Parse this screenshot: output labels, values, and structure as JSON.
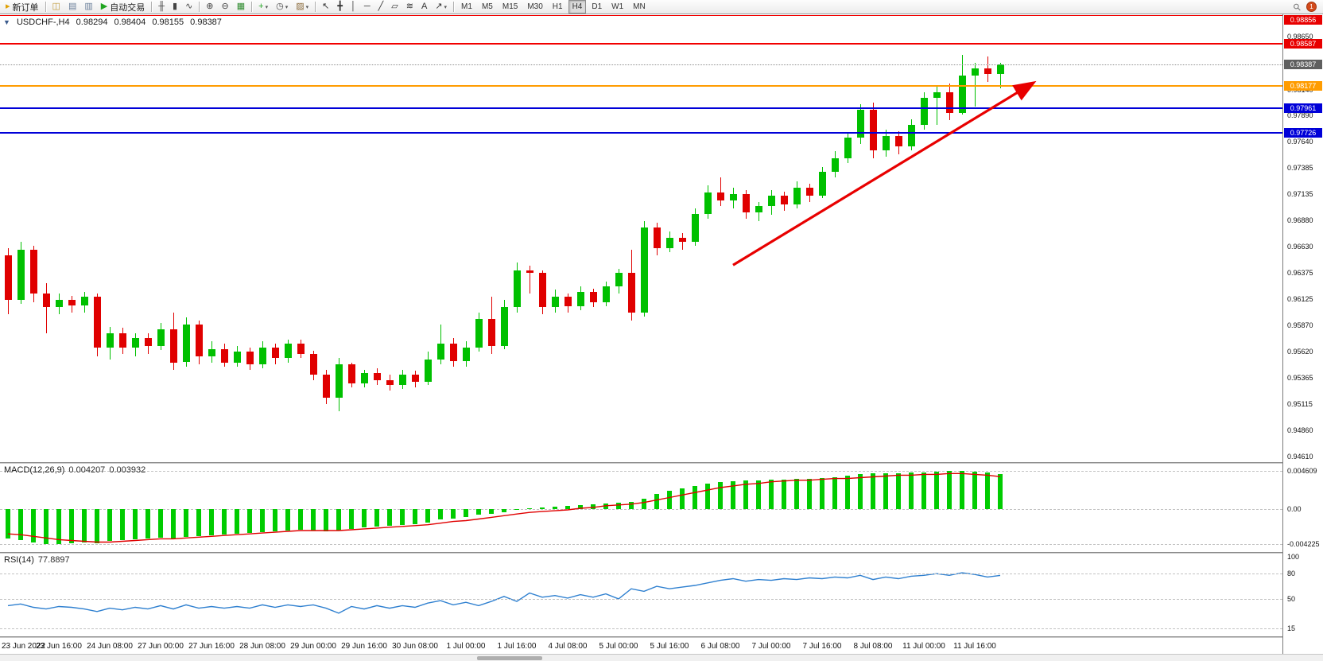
{
  "toolbar": {
    "items": [
      {
        "name": "new-order-button",
        "label": "新订单",
        "glyph": "▸",
        "glyph_color": "#e0a000"
      },
      {
        "name": "separator"
      },
      {
        "name": "market-watch-button",
        "glyph": "◫",
        "glyph_color": "#c09a3a"
      },
      {
        "name": "data-window-button",
        "glyph": "▤",
        "glyph_color": "#6a7f9a"
      },
      {
        "name": "navigator-button",
        "glyph": "▥",
        "glyph_color": "#6a7f9a"
      },
      {
        "name": "autotrading-button",
        "label": "自动交易",
        "glyph": "▶",
        "glyph_color": "#1fa41f"
      },
      {
        "name": "separator"
      },
      {
        "name": "bar-chart-button",
        "glyph": "╫",
        "glyph_color": "#444444"
      },
      {
        "name": "candlestick-chart-button",
        "glyph": "▮",
        "glyph_color": "#444444"
      },
      {
        "name": "line-chart-button",
        "glyph": "∿",
        "glyph_color": "#444444"
      },
      {
        "name": "separator"
      },
      {
        "name": "zoom-in-button",
        "glyph": "⊕",
        "glyph_color": "#444444"
      },
      {
        "name": "zoom-out-button",
        "glyph": "⊖",
        "glyph_color": "#444444"
      },
      {
        "name": "tile-windows-button",
        "glyph": "▦",
        "glyph_color": "#2e8b2e"
      },
      {
        "name": "separator"
      },
      {
        "name": "indicators-button",
        "glyph": "+",
        "glyph_color": "#1fa41f",
        "caret": true
      },
      {
        "name": "periods-button",
        "glyph": "◷",
        "glyph_color": "#444444",
        "caret": true
      },
      {
        "name": "templates-button",
        "glyph": "▨",
        "glyph_color": "#8a6a3a",
        "caret": true
      },
      {
        "name": "separator"
      },
      {
        "name": "cursor-tool-button",
        "glyph": "↖",
        "glyph_color": "#333333"
      },
      {
        "name": "crosshair-tool-button",
        "glyph": "╋",
        "glyph_color": "#333333"
      },
      {
        "name": "vertical-line-tool-button",
        "glyph": "│",
        "glyph_color": "#333333"
      },
      {
        "name": "horizontal-line-tool-button",
        "glyph": "─",
        "glyph_color": "#333333"
      },
      {
        "name": "trendline-tool-button",
        "glyph": "╱",
        "glyph_color": "#333333"
      },
      {
        "name": "channel-tool-button",
        "glyph": "▱",
        "glyph_color": "#333333"
      },
      {
        "name": "fibonacci-tool-button",
        "glyph": "≋",
        "glyph_color": "#333333"
      },
      {
        "name": "text-tool-button",
        "glyph": "A",
        "glyph_color": "#333333"
      },
      {
        "name": "arrows-tool-button",
        "glyph": "↗",
        "glyph_color": "#333333",
        "caret": true
      },
      {
        "name": "separator"
      }
    ],
    "timeframes": [
      "M1",
      "M5",
      "M15",
      "M30",
      "H1",
      "H4",
      "D1",
      "W1",
      "MN"
    ],
    "active_timeframe": "H4",
    "right_items": [
      {
        "name": "search-icon",
        "glyph": "⚲"
      },
      {
        "name": "notification-badge",
        "label": "1",
        "bg": "#d2491a"
      }
    ]
  },
  "chart_header": {
    "collapse_glyph": "▼",
    "symbol_period": "USDCHF-,H4",
    "open": "0.98294",
    "high": "0.98404",
    "low": "0.98155",
    "close": "0.98387"
  },
  "chart_data": [
    {
      "type": "candlestick",
      "title": "USDCHF-,H4",
      "symbol": "USDCHF-",
      "period": "H4",
      "ohlc_header": {
        "open": 0.98294,
        "high": 0.98404,
        "low": 0.98155,
        "close": 0.98387
      },
      "up_color": "#00c000",
      "down_color": "#e00000",
      "ylim": [
        0.9456,
        0.98867
      ],
      "grid": false,
      "price_axis_ticks": [
        "0.98650",
        "0.98140",
        "0.97890",
        "0.97640",
        "0.97385",
        "0.97135",
        "0.96880",
        "0.96630",
        "0.96375",
        "0.96125",
        "0.95870",
        "0.95620",
        "0.95365",
        "0.95115",
        "0.94860",
        "0.94610"
      ],
      "x_labels": [
        "23 Jun 2022",
        "23 Jun 16:00",
        "24 Jun 08:00",
        "27 Jun 00:00",
        "27 Jun 16:00",
        "28 Jun 08:00",
        "29 Jun 00:00",
        "29 Jun 16:00",
        "30 Jun 08:00",
        "1 Jul 00:00",
        "1 Jul 16:00",
        "4 Jul 08:00",
        "5 Jul 00:00",
        "5 Jul 16:00",
        "6 Jul 08:00",
        "7 Jul 00:00",
        "7 Jul 16:00",
        "8 Jul 08:00",
        "11 Jul 00:00",
        "11 Jul 16:00"
      ],
      "bars_per_label": 4,
      "candles": [
        [
          0.9655,
          0.9662,
          0.9598,
          0.9612
        ],
        [
          0.9612,
          0.9668,
          0.9608,
          0.966
        ],
        [
          0.966,
          0.9664,
          0.961,
          0.9618
        ],
        [
          0.9618,
          0.9628,
          0.958,
          0.9605
        ],
        [
          0.9605,
          0.9618,
          0.9598,
          0.9612
        ],
        [
          0.9612,
          0.9616,
          0.96,
          0.9607
        ],
        [
          0.9607,
          0.962,
          0.96,
          0.9615
        ],
        [
          0.9615,
          0.9618,
          0.9558,
          0.9566
        ],
        [
          0.9566,
          0.9586,
          0.9555,
          0.958
        ],
        [
          0.958,
          0.9585,
          0.956,
          0.9566
        ],
        [
          0.9566,
          0.958,
          0.9558,
          0.9575
        ],
        [
          0.9575,
          0.958,
          0.956,
          0.9568
        ],
        [
          0.9568,
          0.959,
          0.9564,
          0.9584
        ],
        [
          0.9584,
          0.96,
          0.9545,
          0.9552
        ],
        [
          0.9552,
          0.9595,
          0.9548,
          0.9588
        ],
        [
          0.9588,
          0.9592,
          0.955,
          0.9558
        ],
        [
          0.9558,
          0.9572,
          0.9552,
          0.9565
        ],
        [
          0.9565,
          0.957,
          0.9548,
          0.9552
        ],
        [
          0.9552,
          0.9568,
          0.9548,
          0.9562
        ],
        [
          0.9562,
          0.9566,
          0.9545,
          0.955
        ],
        [
          0.955,
          0.9572,
          0.9546,
          0.9566
        ],
        [
          0.9566,
          0.957,
          0.955,
          0.9556
        ],
        [
          0.9556,
          0.9574,
          0.9552,
          0.957
        ],
        [
          0.957,
          0.9574,
          0.9556,
          0.956
        ],
        [
          0.956,
          0.9563,
          0.9535,
          0.954
        ],
        [
          0.954,
          0.9545,
          0.9512,
          0.9518
        ],
        [
          0.9518,
          0.9556,
          0.9505,
          0.955
        ],
        [
          0.955,
          0.9552,
          0.9528,
          0.9532
        ],
        [
          0.9532,
          0.9545,
          0.9528,
          0.9542
        ],
        [
          0.9542,
          0.9546,
          0.953,
          0.9535
        ],
        [
          0.9535,
          0.954,
          0.9525,
          0.953
        ],
        [
          0.953,
          0.9545,
          0.9526,
          0.954
        ],
        [
          0.954,
          0.9544,
          0.9528,
          0.9533
        ],
        [
          0.9533,
          0.9562,
          0.953,
          0.9555
        ],
        [
          0.9555,
          0.9588,
          0.955,
          0.957
        ],
        [
          0.957,
          0.9575,
          0.9548,
          0.9553
        ],
        [
          0.9553,
          0.9572,
          0.9548,
          0.9566
        ],
        [
          0.9566,
          0.96,
          0.9562,
          0.9594
        ],
        [
          0.9594,
          0.9615,
          0.956,
          0.9568
        ],
        [
          0.9568,
          0.9612,
          0.9565,
          0.9605
        ],
        [
          0.9605,
          0.9648,
          0.96,
          0.964
        ],
        [
          0.964,
          0.9645,
          0.9618,
          0.9638
        ],
        [
          0.9638,
          0.964,
          0.9598,
          0.9605
        ],
        [
          0.9605,
          0.9622,
          0.96,
          0.9615
        ],
        [
          0.9615,
          0.9618,
          0.96,
          0.9606
        ],
        [
          0.9606,
          0.9625,
          0.9602,
          0.962
        ],
        [
          0.962,
          0.9623,
          0.9605,
          0.961
        ],
        [
          0.961,
          0.963,
          0.9606,
          0.9625
        ],
        [
          0.9625,
          0.9642,
          0.9618,
          0.9638
        ],
        [
          0.9638,
          0.966,
          0.9592,
          0.96
        ],
        [
          0.96,
          0.9688,
          0.9596,
          0.9682
        ],
        [
          0.9682,
          0.9686,
          0.9655,
          0.9662
        ],
        [
          0.9662,
          0.9678,
          0.9658,
          0.9672
        ],
        [
          0.9672,
          0.9676,
          0.966,
          0.9668
        ],
        [
          0.9668,
          0.97,
          0.9664,
          0.9695
        ],
        [
          0.9695,
          0.9722,
          0.969,
          0.9715
        ],
        [
          0.9715,
          0.973,
          0.9702,
          0.9708
        ],
        [
          0.9708,
          0.972,
          0.97,
          0.9714
        ],
        [
          0.9714,
          0.9718,
          0.969,
          0.9696
        ],
        [
          0.9696,
          0.9706,
          0.9688,
          0.9702
        ],
        [
          0.9702,
          0.9718,
          0.9694,
          0.9712
        ],
        [
          0.9712,
          0.9716,
          0.9698,
          0.9704
        ],
        [
          0.9704,
          0.9726,
          0.97,
          0.972
        ],
        [
          0.972,
          0.9724,
          0.9706,
          0.9712
        ],
        [
          0.9712,
          0.974,
          0.971,
          0.9735
        ],
        [
          0.9735,
          0.9755,
          0.973,
          0.9748
        ],
        [
          0.9748,
          0.9772,
          0.9744,
          0.9768
        ],
        [
          0.9768,
          0.98,
          0.9762,
          0.9795
        ],
        [
          0.9795,
          0.9802,
          0.9748,
          0.9756
        ],
        [
          0.9756,
          0.9776,
          0.975,
          0.977
        ],
        [
          0.977,
          0.9774,
          0.9752,
          0.976
        ],
        [
          0.976,
          0.9786,
          0.9756,
          0.978
        ],
        [
          0.978,
          0.9812,
          0.9776,
          0.9806
        ],
        [
          0.9806,
          0.9818,
          0.978,
          0.9812
        ],
        [
          0.9812,
          0.982,
          0.9785,
          0.9792
        ],
        [
          0.9792,
          0.9848,
          0.979,
          0.9828
        ],
        [
          0.9828,
          0.984,
          0.9798,
          0.9835
        ],
        [
          0.9835,
          0.9846,
          0.9822,
          0.98294
        ],
        [
          0.98294,
          0.98404,
          0.98155,
          0.98387
        ]
      ],
      "hlines": [
        {
          "price": 0.98856,
          "label": "0.98856",
          "color": "#f20000",
          "width": 1,
          "style": "solid",
          "tag": "#e80000"
        },
        {
          "price": 0.98587,
          "label": "0.98587",
          "color": "#f20000",
          "width": 2,
          "style": "solid",
          "tag": "#e80000"
        },
        {
          "price": 0.98387,
          "label": "0.98387",
          "color": "#909090",
          "width": 1,
          "style": "dotted",
          "tag": "#5f5f5f",
          "current": true
        },
        {
          "price": 0.98177,
          "label": "0.98177",
          "color": "#ff9c00",
          "width": 2,
          "style": "solid",
          "tag": "#ff9c00"
        },
        {
          "price": 0.97961,
          "label": "0.97961",
          "color": "#0000d8",
          "width": 2,
          "style": "solid",
          "tag": "#0000d8"
        },
        {
          "price": 0.97726,
          "label": "0.97726",
          "color": "#0000d8",
          "width": 2,
          "style": "solid",
          "tag": "#0000d8"
        }
      ],
      "trend_arrow": {
        "from_bar": 57,
        "from_price": 0.96455,
        "to_bar": 80.5,
        "to_price": 0.982,
        "color": "#e80000"
      }
    },
    {
      "type": "bar",
      "name": "MACD(12,26,9)",
      "value_main": "0.004207",
      "value_signal": "0.003932",
      "histogram_color": "#00cc00",
      "signal_color": "#e00000",
      "axis_ticks": [
        {
          "v": 0.004609,
          "label": "0.004609"
        },
        {
          "v": 0.0,
          "label": "0.00"
        },
        {
          "v": -0.004225,
          "label": "-0.004225"
        }
      ],
      "values": [
        -0.0036,
        -0.0038,
        -0.004,
        -0.0042,
        -0.00422,
        -0.0041,
        -0.004,
        -0.0041,
        -0.0039,
        -0.0038,
        -0.0037,
        -0.0036,
        -0.0035,
        -0.0036,
        -0.0034,
        -0.0033,
        -0.0032,
        -0.0031,
        -0.003,
        -0.0029,
        -0.0028,
        -0.0027,
        -0.0026,
        -0.0025,
        -0.0026,
        -0.0027,
        -0.0026,
        -0.0024,
        -0.0022,
        -0.0021,
        -0.002,
        -0.0019,
        -0.0018,
        -0.0016,
        -0.0013,
        -0.0012,
        -0.001,
        -0.0007,
        -0.0006,
        -0.0004,
        -0.0001,
        0.0001,
        0.0002,
        0.0003,
        0.0004,
        0.0005,
        0.0006,
        0.0007,
        0.0008,
        0.0009,
        0.0013,
        0.0018,
        0.0022,
        0.0025,
        0.0028,
        0.0031,
        0.0033,
        0.0034,
        0.0035,
        0.0035,
        0.0036,
        0.0036,
        0.0037,
        0.0037,
        0.0038,
        0.0039,
        0.004,
        0.0042,
        0.0043,
        0.0043,
        0.0043,
        0.0044,
        0.0044,
        0.0045,
        0.004609,
        0.0046,
        0.0045,
        0.0044,
        0.004207
      ],
      "signal": [
        -0.003,
        -0.0031,
        -0.0033,
        -0.0035,
        -0.0037,
        -0.0038,
        -0.0039,
        -0.004,
        -0.004,
        -0.0039,
        -0.0038,
        -0.0037,
        -0.0036,
        -0.0036,
        -0.0035,
        -0.0034,
        -0.0033,
        -0.0032,
        -0.0031,
        -0.003,
        -0.0029,
        -0.0028,
        -0.0027,
        -0.0026,
        -0.0026,
        -0.0026,
        -0.0026,
        -0.0025,
        -0.0024,
        -0.0023,
        -0.0022,
        -0.0021,
        -0.002,
        -0.0019,
        -0.0017,
        -0.0015,
        -0.0014,
        -0.0012,
        -0.001,
        -0.0008,
        -0.0006,
        -0.0004,
        -0.0003,
        -0.0002,
        -0.0001,
        0.0001,
        0.0002,
        0.0004,
        0.0005,
        0.0006,
        0.0008,
        0.0011,
        0.0014,
        0.0017,
        0.002,
        0.0023,
        0.0026,
        0.0028,
        0.003,
        0.0031,
        0.0033,
        0.0034,
        0.0035,
        0.0035,
        0.0036,
        0.0037,
        0.0037,
        0.0038,
        0.0039,
        0.004,
        0.0041,
        0.0041,
        0.0042,
        0.0042,
        0.0043,
        0.0043,
        0.0042,
        0.0041,
        0.003932
      ]
    },
    {
      "type": "line",
      "name": "RSI(14)",
      "value": "77.8897",
      "line_color": "#2f80d0",
      "scale": [
        15,
        100
      ],
      "levels": [
        80,
        50,
        15
      ],
      "axis_ticks": [
        {
          "v": 100,
          "label": "100"
        },
        {
          "v": 80,
          "label": "80"
        },
        {
          "v": 50,
          "label": "50"
        },
        {
          "v": 15,
          "label": "15"
        }
      ],
      "values": [
        42,
        44,
        40,
        38,
        41,
        40,
        38,
        35,
        39,
        37,
        40,
        38,
        42,
        38,
        43,
        39,
        41,
        39,
        41,
        39,
        43,
        40,
        43,
        41,
        43,
        39,
        33,
        41,
        38,
        42,
        39,
        42,
        40,
        45,
        48,
        43,
        46,
        42,
        47,
        53,
        47,
        57,
        52,
        54,
        51,
        55,
        52,
        56,
        50,
        62,
        59,
        65,
        62,
        64,
        66,
        69,
        72,
        74,
        71,
        73,
        72,
        74,
        73,
        75,
        74,
        76,
        75,
        78,
        73,
        76,
        74,
        77,
        78,
        80,
        78,
        81,
        79,
        76,
        77.8897
      ]
    }
  ]
}
